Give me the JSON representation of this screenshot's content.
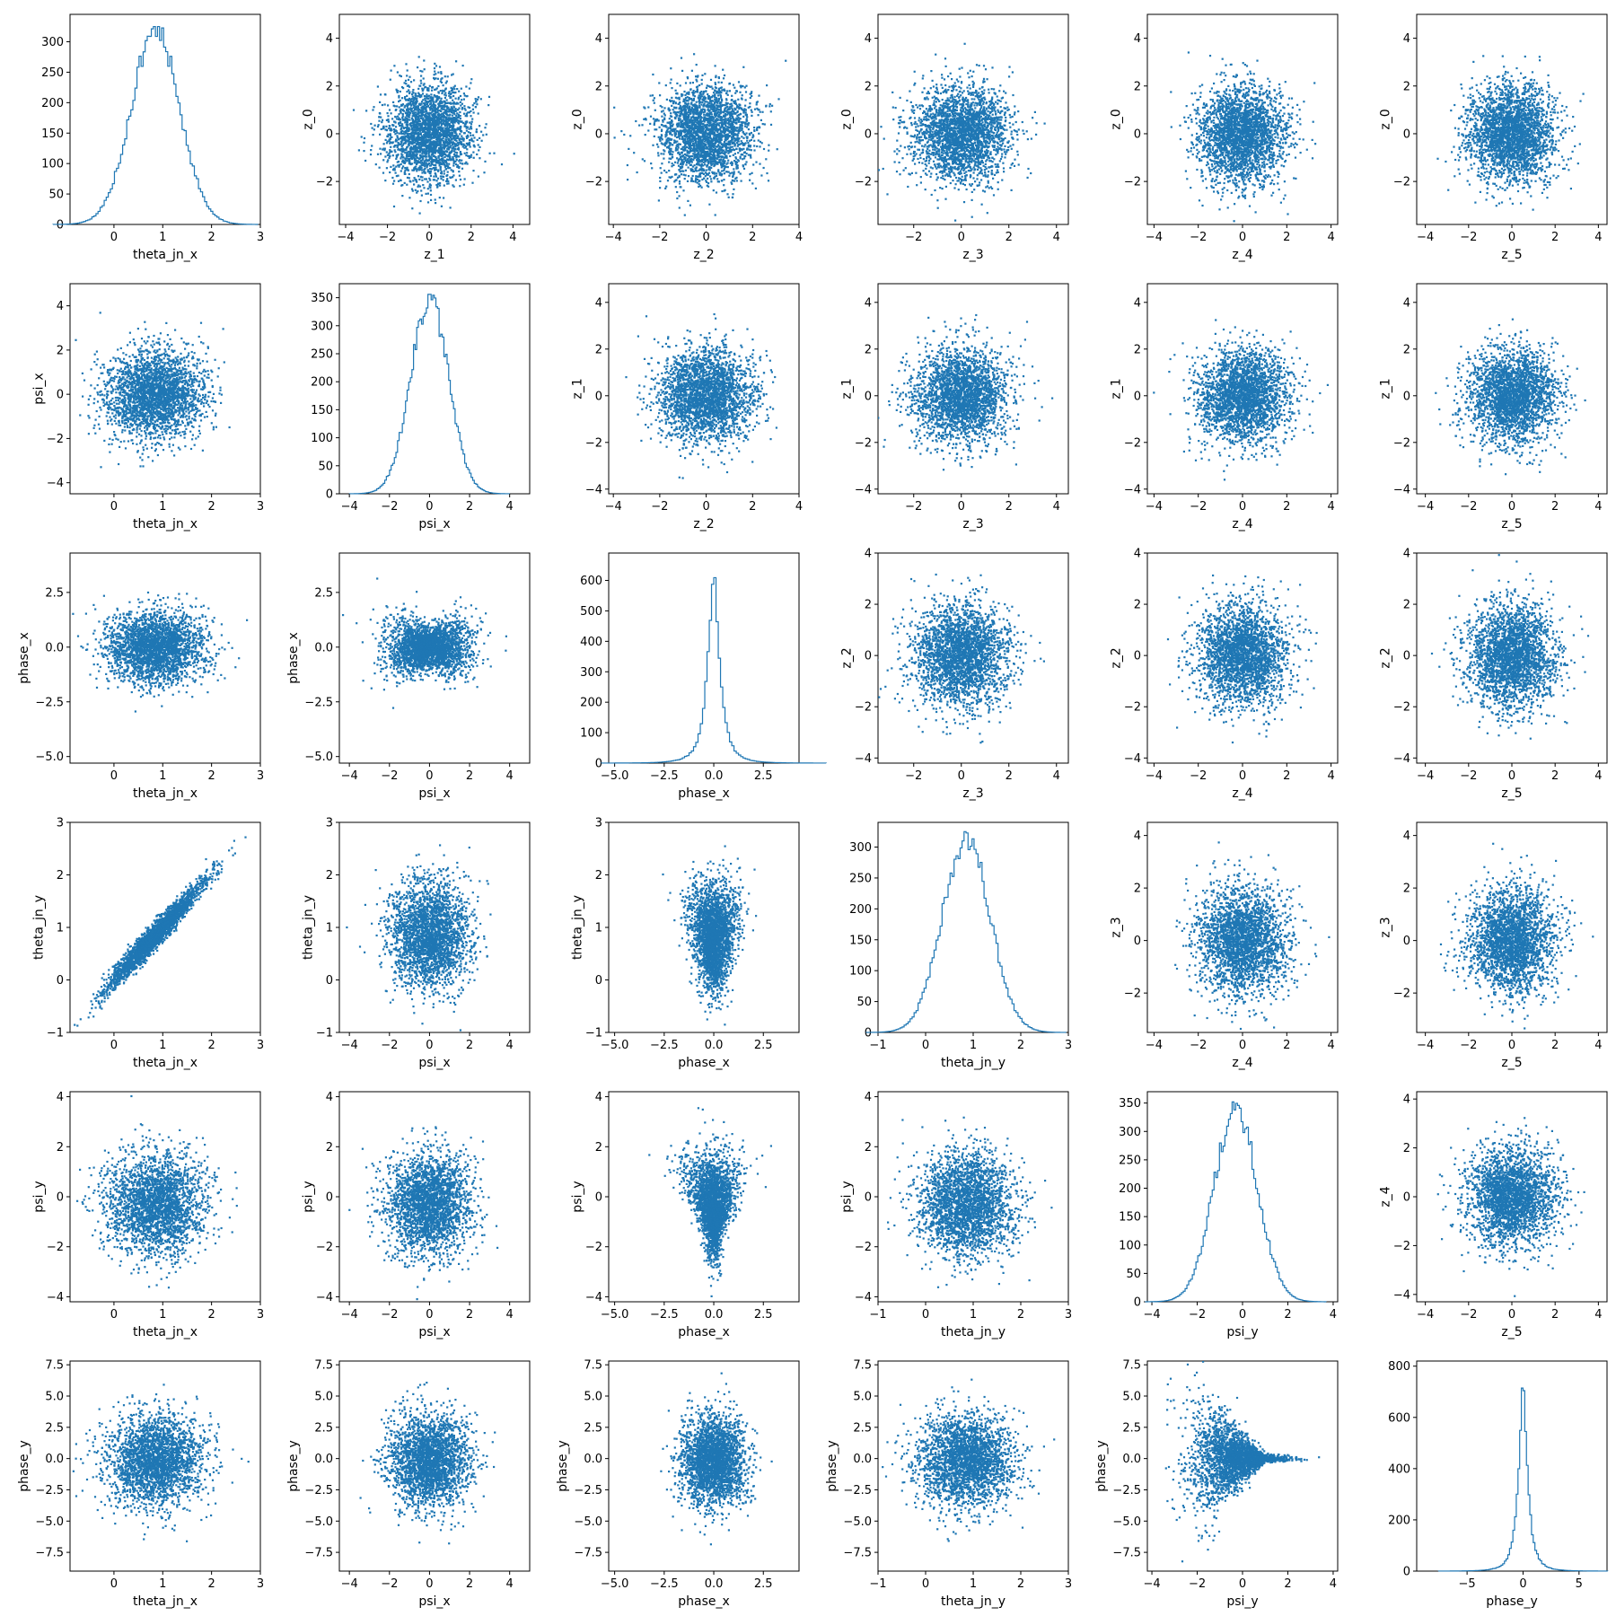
{
  "chart_data": {
    "type": "pair-grid",
    "rows": 6,
    "cols": 6,
    "marker_color": "#1f77b4",
    "vars": {
      "theta_jn_x": {
        "range": [
          -0.9,
          3.0
        ],
        "ticks": [
          0,
          1,
          2,
          3
        ],
        "tick_labels": [
          "0",
          "1",
          "2",
          "3"
        ]
      },
      "psi_x": {
        "range": [
          -4.5,
          5.0
        ],
        "ticks": [
          -4,
          -2,
          0,
          2,
          4
        ],
        "tick_labels": [
          "−4",
          "−2",
          "0",
          "2",
          "4"
        ]
      },
      "phase_x": {
        "range": [
          -5.3,
          4.3
        ],
        "ticks": [
          -5,
          -2.5,
          0,
          2.5
        ],
        "tick_labels": [
          "−5.0",
          "−2.5",
          "0.0",
          "2.5"
        ]
      },
      "theta_jn_y": {
        "range": [
          -1.0,
          3.0
        ],
        "ticks": [
          -1,
          0,
          1,
          2,
          3
        ],
        "tick_labels": [
          "−1",
          "0",
          "1",
          "2",
          "3"
        ]
      },
      "psi_y": {
        "range": [
          -4.2,
          4.2
        ],
        "ticks": [
          -4,
          -2,
          0,
          2,
          4
        ],
        "tick_labels": [
          "−4",
          "−2",
          "0",
          "2",
          "4"
        ]
      },
      "phase_y": {
        "range": [
          -9.0,
          7.8
        ],
        "ticks": [
          -7.5,
          -5,
          -2.5,
          0,
          2.5,
          5,
          7.5
        ],
        "tick_labels": [
          "−7.5",
          "−5.0",
          "−2.5",
          "0.0",
          "2.5",
          "5.0",
          "7.5"
        ]
      },
      "phase_y_hist": {
        "range": [
          -9.5,
          7.5
        ],
        "ticks": [
          -5,
          0,
          5
        ],
        "tick_labels": [
          "−5",
          "0",
          "5"
        ]
      },
      "z_0": {
        "range": [
          -3.8,
          5.0
        ],
        "ticks": [
          -2,
          0,
          2,
          4
        ],
        "tick_labels": [
          "−2",
          "0",
          "2",
          "4"
        ]
      },
      "z_1": {
        "range": [
          -4.2,
          4.8
        ],
        "ticks": [
          -4,
          -2,
          0,
          2,
          4
        ],
        "tick_labels": [
          "−4",
          "−2",
          "0",
          "2",
          "4"
        ]
      },
      "z_1x": {
        "range": [
          -4.3,
          4.8
        ],
        "ticks": [
          -4,
          -2,
          0,
          2,
          4
        ],
        "tick_labels": [
          "−4",
          "−2",
          "0",
          "2",
          "4"
        ]
      },
      "z_2": {
        "range": [
          -4.2,
          4.0
        ],
        "ticks": [
          -4,
          -2,
          0,
          2,
          4
        ],
        "tick_labels": [
          "−4",
          "−2",
          "0",
          "2",
          "4"
        ]
      },
      "z_3": {
        "range": [
          -3.5,
          4.5
        ],
        "ticks": [
          -2,
          0,
          2,
          4
        ],
        "tick_labels": [
          "−2",
          "0",
          "2",
          "4"
        ]
      },
      "z_4": {
        "range": [
          -4.3,
          4.3
        ],
        "ticks": [
          -4,
          -2,
          0,
          2,
          4
        ],
        "tick_labels": [
          "−4",
          "−2",
          "0",
          "2",
          "4"
        ]
      },
      "z_5": {
        "range": [
          -4.4,
          4.4
        ],
        "ticks": [
          -4,
          -2,
          0,
          2,
          4
        ],
        "tick_labels": [
          "−4",
          "−2",
          "0",
          "2",
          "4"
        ]
      }
    },
    "histograms": [
      {
        "row": 0,
        "col": 0,
        "xlabel": "theta_jn_x",
        "x": "theta_jn_x",
        "mean": 0.85,
        "sd": 0.5,
        "peak": 325,
        "ylim": [
          0,
          345
        ],
        "yticks": [
          0,
          50,
          100,
          150,
          200,
          250,
          300
        ],
        "ytick_labels": [
          "0",
          "50",
          "100",
          "150",
          "200",
          "250",
          "300"
        ],
        "bins": 100
      },
      {
        "row": 1,
        "col": 1,
        "xlabel": "psi_x",
        "x": "psi_x",
        "mean": 0.0,
        "sd": 0.95,
        "peak": 356,
        "ylim": [
          0,
          375
        ],
        "yticks": [
          0,
          50,
          100,
          150,
          200,
          250,
          300,
          350
        ],
        "ytick_labels": [
          "0",
          "50",
          "100",
          "150",
          "200",
          "250",
          "300",
          "350"
        ],
        "bins": 100
      },
      {
        "row": 2,
        "col": 2,
        "xlabel": "phase_x",
        "x": "phase_x",
        "mean": 0.0,
        "sd": 0.45,
        "peak": 660,
        "ylim": [
          0,
          690
        ],
        "yticks": [
          0,
          100,
          200,
          300,
          400,
          500,
          600
        ],
        "ytick_labels": [
          "0",
          "100",
          "200",
          "300",
          "400",
          "500",
          "600"
        ],
        "bins": 100,
        "heavy_tail": true
      },
      {
        "row": 3,
        "col": 3,
        "xlabel": "theta_jn_y",
        "x": "theta_jn_y",
        "mean": 0.85,
        "sd": 0.5,
        "peak": 325,
        "ylim": [
          0,
          340
        ],
        "yticks": [
          0,
          50,
          100,
          150,
          200,
          250,
          300
        ],
        "ytick_labels": [
          "0",
          "50",
          "100",
          "150",
          "200",
          "250",
          "300"
        ],
        "bins": 100
      },
      {
        "row": 4,
        "col": 4,
        "xlabel": "psi_y",
        "x": "psi_y",
        "mean": -0.3,
        "sd": 0.95,
        "peak": 352,
        "ylim": [
          0,
          370
        ],
        "yticks": [
          0,
          50,
          100,
          150,
          200,
          250,
          300,
          350
        ],
        "ytick_labels": [
          "0",
          "50",
          "100",
          "150",
          "200",
          "250",
          "300",
          "350"
        ],
        "bins": 100
      },
      {
        "row": 5,
        "col": 5,
        "xlabel": "phase_y",
        "x": "phase_y_hist",
        "mean": 0.0,
        "sd": 0.6,
        "peak": 775,
        "ylim": [
          0,
          820
        ],
        "yticks": [
          0,
          200,
          400,
          600,
          800
        ],
        "ytick_labels": [
          "0",
          "200",
          "400",
          "600",
          "800"
        ],
        "bins": 100,
        "heavy_tail": true
      }
    ],
    "scatters": [
      {
        "row": 0,
        "col": 1,
        "x": "z_1x",
        "y": "z_0",
        "xlabel": "z_1",
        "ylabel": "z_0",
        "shape": "iso",
        "mx": 0,
        "my": 0,
        "sx": 1,
        "sy": 1
      },
      {
        "row": 0,
        "col": 2,
        "x": "z_2",
        "y": "z_0",
        "xlabel": "z_2",
        "ylabel": "z_0",
        "shape": "iso",
        "mx": 0,
        "my": 0,
        "sx": 1,
        "sy": 1
      },
      {
        "row": 0,
        "col": 3,
        "x": "z_3",
        "y": "z_0",
        "xlabel": "z_3",
        "ylabel": "z_0",
        "shape": "iso",
        "mx": 0,
        "my": 0,
        "sx": 1,
        "sy": 1
      },
      {
        "row": 0,
        "col": 4,
        "x": "z_4",
        "y": "z_0",
        "xlabel": "z_4",
        "ylabel": "z_0",
        "shape": "iso",
        "mx": 0,
        "my": 0,
        "sx": 1,
        "sy": 1
      },
      {
        "row": 0,
        "col": 5,
        "x": "z_5",
        "y": "z_0",
        "xlabel": "z_5",
        "ylabel": "z_0",
        "shape": "iso",
        "mx": 0,
        "my": 0,
        "sx": 1,
        "sy": 1
      },
      {
        "row": 1,
        "col": 0,
        "x": "theta_jn_x",
        "y": "psi_x",
        "xlabel": "theta_jn_x",
        "ylabel": "psi_x",
        "shape": "iso",
        "mx": 0.85,
        "my": 0,
        "sx": 0.5,
        "sy": 1
      },
      {
        "row": 1,
        "col": 2,
        "x": "z_2",
        "y": "z_1",
        "xlabel": "z_2",
        "ylabel": "z_1",
        "shape": "iso",
        "mx": 0,
        "my": 0,
        "sx": 1,
        "sy": 1
      },
      {
        "row": 1,
        "col": 3,
        "x": "z_3",
        "y": "z_1",
        "xlabel": "z_3",
        "ylabel": "z_1",
        "shape": "iso",
        "mx": 0,
        "my": 0,
        "sx": 1,
        "sy": 1
      },
      {
        "row": 1,
        "col": 4,
        "x": "z_4",
        "y": "z_1",
        "xlabel": "z_4",
        "ylabel": "z_1",
        "shape": "iso",
        "mx": 0,
        "my": 0,
        "sx": 1,
        "sy": 1
      },
      {
        "row": 1,
        "col": 5,
        "x": "z_5",
        "y": "z_1",
        "xlabel": "z_5",
        "ylabel": "z_1",
        "shape": "iso",
        "mx": 0,
        "my": 0,
        "sx": 1,
        "sy": 1
      },
      {
        "row": 2,
        "col": 0,
        "x": "theta_jn_x",
        "y": "phase_x",
        "xlabel": "theta_jn_x",
        "ylabel": "phase_x",
        "shape": "iso",
        "mx": 0.85,
        "my": 0,
        "sx": 0.5,
        "sy": 0.8
      },
      {
        "row": 2,
        "col": 1,
        "x": "psi_x",
        "y": "phase_x",
        "xlabel": "psi_x",
        "ylabel": "phase_x",
        "shape": "bowtie",
        "mx": 0,
        "my": 0,
        "sx": 1,
        "sy": 0.8
      },
      {
        "row": 2,
        "col": 3,
        "x": "z_3",
        "y": "z_2",
        "xlabel": "z_3",
        "ylabel": "z_2",
        "shape": "iso",
        "mx": 0,
        "my": 0,
        "sx": 1,
        "sy": 1
      },
      {
        "row": 2,
        "col": 4,
        "x": "z_4",
        "y": "z_2",
        "xlabel": "z_4",
        "ylabel": "z_2",
        "shape": "iso",
        "mx": 0,
        "my": 0,
        "sx": 1,
        "sy": 1
      },
      {
        "row": 2,
        "col": 5,
        "x": "z_5",
        "y": "z_2",
        "xlabel": "z_5",
        "ylabel": "z_2",
        "shape": "iso",
        "mx": 0,
        "my": 0,
        "sx": 1,
        "sy": 1
      },
      {
        "row": 3,
        "col": 0,
        "x": "theta_jn_x",
        "y": "theta_jn_y",
        "xlabel": "theta_jn_x",
        "ylabel": "theta_jn_y",
        "shape": "corr",
        "mx": 0.85,
        "my": 0.85,
        "sx": 0.5,
        "sy": 0.5
      },
      {
        "row": 3,
        "col": 1,
        "x": "psi_x",
        "y": "theta_jn_y",
        "xlabel": "psi_x",
        "ylabel": "theta_jn_y",
        "shape": "iso",
        "mx": 0,
        "my": 0.85,
        "sx": 1,
        "sy": 0.5
      },
      {
        "row": 3,
        "col": 2,
        "x": "phase_x",
        "y": "theta_jn_y",
        "xlabel": "phase_x",
        "ylabel": "theta_jn_y",
        "shape": "diamond",
        "mx": 0,
        "my": 0.85,
        "sx": 0.8,
        "sy": 0.5
      },
      {
        "row": 3,
        "col": 4,
        "x": "z_4",
        "y": "z_3",
        "xlabel": "z_4",
        "ylabel": "z_3",
        "shape": "iso",
        "mx": 0,
        "my": 0,
        "sx": 1,
        "sy": 1
      },
      {
        "row": 3,
        "col": 5,
        "x": "z_5",
        "y": "z_3",
        "xlabel": "z_5",
        "ylabel": "z_3",
        "shape": "iso",
        "mx": 0,
        "my": 0,
        "sx": 1,
        "sy": 1
      },
      {
        "row": 4,
        "col": 0,
        "x": "theta_jn_x",
        "y": "psi_y",
        "xlabel": "theta_jn_x",
        "ylabel": "psi_y",
        "shape": "iso",
        "mx": 0.85,
        "my": -0.3,
        "sx": 0.5,
        "sy": 1
      },
      {
        "row": 4,
        "col": 1,
        "x": "psi_x",
        "y": "psi_y",
        "xlabel": "psi_x",
        "ylabel": "psi_y",
        "shape": "iso",
        "mx": 0,
        "my": -0.3,
        "sx": 1,
        "sy": 1
      },
      {
        "row": 4,
        "col": 2,
        "x": "phase_x",
        "y": "psi_y",
        "xlabel": "phase_x",
        "ylabel": "psi_y",
        "shape": "funnel",
        "mx": 0,
        "my": -0.3,
        "sx": 0.8,
        "sy": 1
      },
      {
        "row": 4,
        "col": 3,
        "x": "theta_jn_y",
        "y": "psi_y",
        "xlabel": "theta_jn_y",
        "ylabel": "psi_y",
        "shape": "iso",
        "mx": 0.85,
        "my": -0.3,
        "sx": 0.5,
        "sy": 1
      },
      {
        "row": 4,
        "col": 5,
        "x": "z_5",
        "y": "z_4",
        "xlabel": "z_5",
        "ylabel": "z_4",
        "shape": "iso",
        "mx": 0,
        "my": 0,
        "sx": 1,
        "sy": 1
      },
      {
        "row": 5,
        "col": 0,
        "x": "theta_jn_x",
        "y": "phase_y",
        "xlabel": "theta_jn_x",
        "ylabel": "phase_y",
        "shape": "iso",
        "mx": 0.85,
        "my": -0.2,
        "sx": 0.5,
        "sy": 1.8
      },
      {
        "row": 5,
        "col": 1,
        "x": "psi_x",
        "y": "phase_y",
        "xlabel": "psi_x",
        "ylabel": "phase_y",
        "shape": "iso",
        "mx": 0,
        "my": -0.2,
        "sx": 1,
        "sy": 1.8
      },
      {
        "row": 5,
        "col": 2,
        "x": "phase_x",
        "y": "phase_y",
        "xlabel": "phase_x",
        "ylabel": "phase_y",
        "shape": "iso",
        "mx": 0,
        "my": -0.2,
        "sx": 0.8,
        "sy": 1.8
      },
      {
        "row": 5,
        "col": 3,
        "x": "theta_jn_y",
        "y": "phase_y",
        "xlabel": "theta_jn_y",
        "ylabel": "phase_y",
        "shape": "iso",
        "mx": 0.85,
        "my": -0.2,
        "sx": 0.5,
        "sy": 1.8
      },
      {
        "row": 5,
        "col": 4,
        "x": "psi_y",
        "y": "phase_y",
        "xlabel": "psi_y",
        "ylabel": "phase_y",
        "shape": "fan",
        "mx": -0.3,
        "my": 0,
        "sx": 1,
        "sy": 1.8
      }
    ]
  }
}
